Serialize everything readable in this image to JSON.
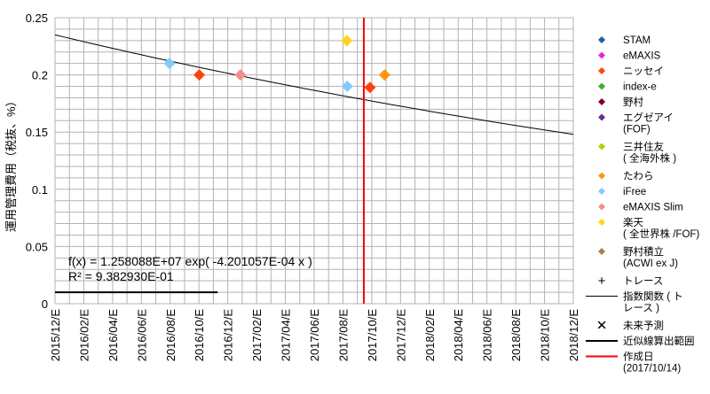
{
  "chart_data": {
    "type": "scatter",
    "title": "",
    "ylabel": "運用管理費用（税抜、%）",
    "xlabel": "",
    "ylim": [
      0,
      0.25
    ],
    "y_ticks": [
      "0",
      "0.05",
      "0.1",
      "0.15",
      "0.2",
      "0.25"
    ],
    "x_ticks": [
      "2015/12/E",
      "2016/02/E",
      "2016/04/E",
      "2016/06/E",
      "2016/08/E",
      "2016/10/E",
      "2016/12/E",
      "2017/02/E",
      "2017/04/E",
      "2017/06/E",
      "2017/08/E",
      "2017/10/E",
      "2017/12/E",
      "2018/02/E",
      "2018/04/E",
      "2018/06/E",
      "2018/08/E",
      "2018/10/E",
      "2018/12/E"
    ],
    "x_range": [
      "2015-12-31",
      "2018-12-31"
    ],
    "grid": true,
    "legend_position": "right",
    "series": [
      {
        "name": "STAM",
        "color": "#1f5fa0",
        "marker": "diamond",
        "points": []
      },
      {
        "name": "eMAXIS",
        "color": "#ee22dd",
        "marker": "diamond",
        "points": []
      },
      {
        "name": "ニッセイ",
        "color": "#ff420e",
        "marker": "diamond",
        "points": [
          {
            "x": "2016-10-31",
            "y": 0.2
          },
          {
            "x": "2017-10-27",
            "y": 0.189
          }
        ]
      },
      {
        "name": "index-e",
        "color": "#3dab33",
        "marker": "diamond",
        "points": []
      },
      {
        "name": "野村",
        "color": "#7e0021",
        "marker": "diamond",
        "points": []
      },
      {
        "name": "エグゼアイ\n(FOF)",
        "color": "#6b2b8c",
        "marker": "diamond",
        "points": []
      },
      {
        "name": "三井住友\n( 全海外株 )",
        "color": "#aecf00",
        "marker": "diamond",
        "points": []
      },
      {
        "name": "たわら",
        "color": "#ff950e",
        "marker": "diamond",
        "points": [
          {
            "x": "2017-11-27",
            "y": 0.2
          }
        ]
      },
      {
        "name": "iFree",
        "color": "#83caff",
        "marker": "diamond",
        "points": [
          {
            "x": "2016-08-29",
            "y": 0.21
          },
          {
            "x": "2017-09-09",
            "y": 0.19
          }
        ]
      },
      {
        "name": "eMAXIS Slim",
        "color": "#f58d8d",
        "marker": "diamond",
        "points": [
          {
            "x": "2017-01-26",
            "y": 0.2
          }
        ]
      },
      {
        "name": "楽天\n( 全世界株 /FOF)",
        "color": "#ffd320",
        "marker": "diamond",
        "points": [
          {
            "x": "2017-09-08",
            "y": 0.23
          }
        ]
      },
      {
        "name": "野村積立\n(ACWI ex J)",
        "color": "#b07d4b",
        "marker": "diamond",
        "points": []
      },
      {
        "name": "トレース",
        "marker": "plus",
        "points": []
      },
      {
        "name": "指数関数 ( ト\nレース )",
        "marker": "line",
        "color": "#000000"
      },
      {
        "name": "未来予測",
        "marker": "cross",
        "points": []
      },
      {
        "name": "近似線算出範囲",
        "marker": "line",
        "color": "#000000"
      },
      {
        "name": "作成日\n(2017/10/14)",
        "marker": "line",
        "color": "#ff0000"
      }
    ],
    "trendline": {
      "type": "exponential",
      "equation": "f(x) = 1.258088E+07 exp( -4.201057E-04 x )",
      "r_squared": "R² = 9.382930E-01",
      "y_at_start": 0.235,
      "y_at_end": 0.148
    },
    "fit_range": {
      "from": "2015-12-31",
      "to": "2016-12-09",
      "y": 0.01
    },
    "creation_date": "2017-10-14"
  }
}
